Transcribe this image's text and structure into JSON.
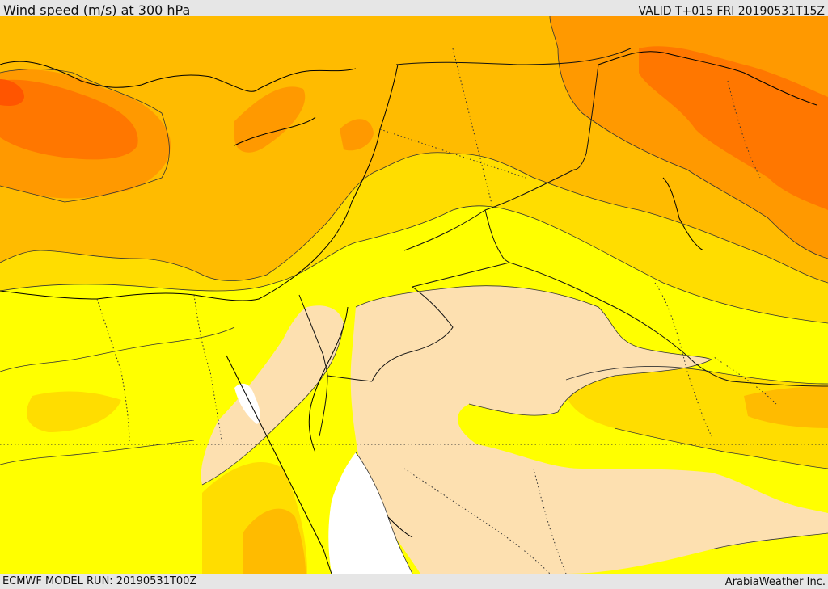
{
  "header": {
    "title": "Wind speed (m/s) at 300 hPa",
    "valid_time": "VALID T+015 FRI 20190531T15Z"
  },
  "footer": {
    "model_run": "ECMWF MODEL RUN: 20190531T00Z",
    "credit": "ArabiaWeather Inc."
  },
  "map": {
    "field": "wind speed at 300 hPa",
    "legend_visible": false,
    "colors": {
      "calm_white": "#ffffff",
      "light_tan": "#fde0b0",
      "yellow": "#ffff00",
      "gold": "#ffdd00",
      "amber": "#ffbb00",
      "orange": "#ff9900",
      "deep_orange": "#ff7700",
      "red_orange": "#ff5500",
      "contour_line": "#333333",
      "coastline": "#000000",
      "border_dotted": "#333333"
    }
  }
}
